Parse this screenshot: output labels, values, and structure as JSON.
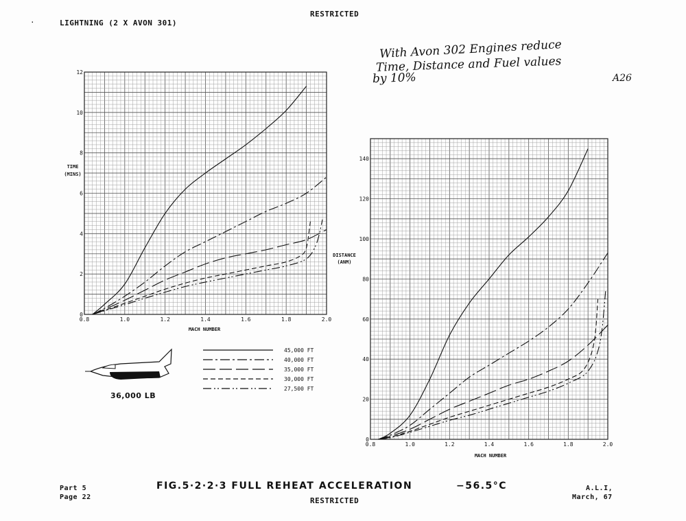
{
  "header": {
    "restricted_top": "RESTRICTED",
    "aircraft": "LIGHTNING (2 X AVON 301)",
    "margin_mark": "·"
  },
  "handwritten": {
    "line1": "With Avon 302 Engines reduce",
    "line2": "Time, Distance and Fuel values",
    "line3": "by 10%",
    "ref": "A26"
  },
  "footer": {
    "part": "Part 5",
    "page": "Page 22",
    "figure_title": "FIG.5·2·2·3   FULL  REHEAT  ACCELERATION",
    "temperature": "−56.5°C",
    "restricted_bottom": "RESTRICTED",
    "org": "A.L.I,",
    "date": "March, 67"
  },
  "aircraft_label": "36,000 LB",
  "legend": [
    {
      "name": "45,000 FT",
      "dash": "solid"
    },
    {
      "name": "40,000 FT",
      "dash": "dashdot"
    },
    {
      "name": "35,000 FT",
      "dash": "longdash"
    },
    {
      "name": "30,000 FT",
      "dash": "dashed"
    },
    {
      "name": "27,500 FT",
      "dash": "dashdotdot"
    }
  ],
  "chart_data": [
    {
      "type": "line",
      "ylabel": "TIME (MINS)",
      "xlabel": "MACH NUMBER",
      "xlim": [
        0.8,
        2.0
      ],
      "ylim": [
        0,
        12
      ],
      "x_ticks": [
        "0.8",
        "1.0",
        "1.2",
        "1.4",
        "1.6",
        "1.8",
        "2.0"
      ],
      "y_ticks": [
        "0",
        "2",
        "4",
        "6",
        "8",
        "10",
        "12"
      ],
      "grid": true,
      "series": [
        {
          "name": "45,000 FT",
          "points": [
            [
              0.84,
              0
            ],
            [
              0.9,
              0.5
            ],
            [
              1.0,
              1.5
            ],
            [
              1.1,
              3.3
            ],
            [
              1.2,
              5.0
            ],
            [
              1.3,
              6.2
            ],
            [
              1.4,
              7.0
            ],
            [
              1.5,
              7.7
            ],
            [
              1.6,
              8.4
            ],
            [
              1.7,
              9.2
            ],
            [
              1.8,
              10.1
            ],
            [
              1.9,
              11.3
            ]
          ]
        },
        {
          "name": "40,000 FT",
          "points": [
            [
              0.84,
              0
            ],
            [
              0.9,
              0.3
            ],
            [
              1.0,
              0.9
            ],
            [
              1.1,
              1.6
            ],
            [
              1.2,
              2.4
            ],
            [
              1.3,
              3.1
            ],
            [
              1.4,
              3.6
            ],
            [
              1.5,
              4.1
            ],
            [
              1.6,
              4.6
            ],
            [
              1.7,
              5.1
            ],
            [
              1.8,
              5.5
            ],
            [
              1.9,
              6.0
            ],
            [
              2.0,
              6.8
            ]
          ]
        },
        {
          "name": "35,000 FT",
          "points": [
            [
              0.84,
              0
            ],
            [
              0.9,
              0.25
            ],
            [
              1.0,
              0.7
            ],
            [
              1.1,
              1.2
            ],
            [
              1.2,
              1.7
            ],
            [
              1.3,
              2.1
            ],
            [
              1.4,
              2.5
            ],
            [
              1.5,
              2.8
            ],
            [
              1.6,
              3.0
            ],
            [
              1.7,
              3.2
            ],
            [
              1.8,
              3.45
            ],
            [
              1.9,
              3.7
            ],
            [
              2.0,
              4.2
            ]
          ]
        },
        {
          "name": "30,000 FT",
          "points": [
            [
              0.84,
              0
            ],
            [
              0.9,
              0.2
            ],
            [
              1.0,
              0.55
            ],
            [
              1.1,
              0.9
            ],
            [
              1.2,
              1.25
            ],
            [
              1.3,
              1.55
            ],
            [
              1.4,
              1.8
            ],
            [
              1.5,
              2.0
            ],
            [
              1.6,
              2.2
            ],
            [
              1.7,
              2.4
            ],
            [
              1.8,
              2.6
            ],
            [
              1.87,
              2.9
            ],
            [
              1.9,
              3.3
            ],
            [
              1.92,
              4.6
            ]
          ]
        },
        {
          "name": "27,500 FT",
          "points": [
            [
              0.84,
              0
            ],
            [
              0.9,
              0.18
            ],
            [
              1.0,
              0.48
            ],
            [
              1.1,
              0.8
            ],
            [
              1.2,
              1.1
            ],
            [
              1.3,
              1.38
            ],
            [
              1.4,
              1.6
            ],
            [
              1.5,
              1.8
            ],
            [
              1.6,
              2.0
            ],
            [
              1.7,
              2.2
            ],
            [
              1.8,
              2.4
            ],
            [
              1.9,
              2.75
            ],
            [
              1.95,
              3.5
            ],
            [
              1.98,
              4.7
            ]
          ]
        }
      ]
    },
    {
      "type": "line",
      "ylabel": "DISTANCE (ANM)",
      "xlabel": "MACH NUMBER",
      "xlim": [
        0.8,
        2.0
      ],
      "ylim": [
        0,
        150
      ],
      "x_ticks": [
        "0.8",
        "1.0",
        "1.2",
        "1.4",
        "1.6",
        "1.8",
        "2.0"
      ],
      "y_ticks": [
        "0",
        "20",
        "40",
        "60",
        "80",
        "100",
        "120",
        "140"
      ],
      "grid": true,
      "series": [
        {
          "name": "45,000 FT",
          "points": [
            [
              0.84,
              0
            ],
            [
              0.9,
              3
            ],
            [
              1.0,
              12
            ],
            [
              1.1,
              30
            ],
            [
              1.2,
              52
            ],
            [
              1.3,
              68
            ],
            [
              1.4,
              80
            ],
            [
              1.5,
              92
            ],
            [
              1.6,
              101
            ],
            [
              1.7,
              111
            ],
            [
              1.8,
              124
            ],
            [
              1.9,
              145
            ]
          ]
        },
        {
          "name": "40,000 FT",
          "points": [
            [
              0.84,
              0
            ],
            [
              0.9,
              2
            ],
            [
              1.0,
              7
            ],
            [
              1.1,
              15
            ],
            [
              1.2,
              23
            ],
            [
              1.3,
              31
            ],
            [
              1.4,
              37
            ],
            [
              1.5,
              43
            ],
            [
              1.6,
              49
            ],
            [
              1.7,
              56
            ],
            [
              1.8,
              65
            ],
            [
              1.9,
              78
            ],
            [
              2.0,
              93
            ]
          ]
        },
        {
          "name": "35,000 FT",
          "points": [
            [
              0.84,
              0
            ],
            [
              0.9,
              1.5
            ],
            [
              1.0,
              5
            ],
            [
              1.1,
              10
            ],
            [
              1.2,
              15
            ],
            [
              1.3,
              19
            ],
            [
              1.4,
              23
            ],
            [
              1.5,
              27
            ],
            [
              1.6,
              30
            ],
            [
              1.7,
              34
            ],
            [
              1.8,
              39
            ],
            [
              1.9,
              47
            ],
            [
              2.0,
              57
            ]
          ]
        },
        {
          "name": "30,000 FT",
          "points": [
            [
              0.84,
              0
            ],
            [
              0.9,
              1
            ],
            [
              1.0,
              4
            ],
            [
              1.1,
              7.5
            ],
            [
              1.2,
              11
            ],
            [
              1.3,
              14
            ],
            [
              1.4,
              17
            ],
            [
              1.5,
              20
            ],
            [
              1.6,
              23
            ],
            [
              1.7,
              26
            ],
            [
              1.8,
              30
            ],
            [
              1.88,
              35
            ],
            [
              1.93,
              48
            ],
            [
              1.95,
              70
            ]
          ]
        },
        {
          "name": "27,500 FT",
          "points": [
            [
              0.84,
              0
            ],
            [
              0.9,
              0.8
            ],
            [
              1.0,
              3.5
            ],
            [
              1.1,
              6.5
            ],
            [
              1.2,
              9.5
            ],
            [
              1.3,
              12
            ],
            [
              1.4,
              15
            ],
            [
              1.5,
              18
            ],
            [
              1.6,
              21
            ],
            [
              1.7,
              24
            ],
            [
              1.8,
              28
            ],
            [
              1.9,
              34
            ],
            [
              1.96,
              48
            ],
            [
              1.99,
              75
            ]
          ]
        }
      ]
    }
  ]
}
